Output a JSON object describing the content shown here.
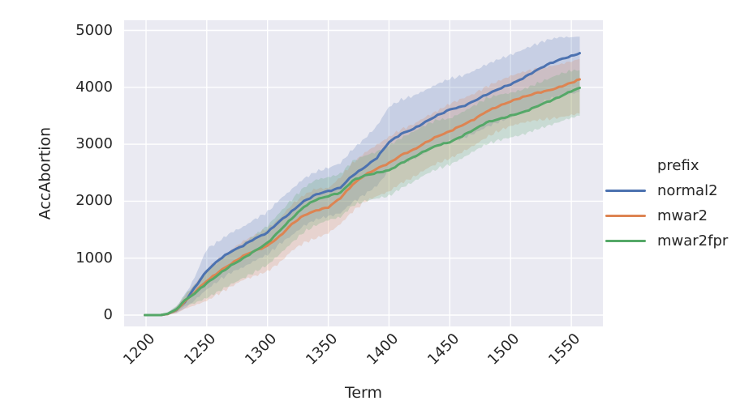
{
  "chart_data": {
    "type": "line",
    "xlabel": "Term",
    "ylabel": "AccAbortion",
    "legend_title": "prefix",
    "legend_position": "right",
    "grid": true,
    "style": "seaborn-darkgrid",
    "colors": {
      "axes_background": "#eaeaf2",
      "grid": "#ffffff",
      "text": "#262626",
      "figure_background": "#ffffff"
    },
    "xlim": [
      1182,
      1576
    ],
    "ylim": [
      -199,
      5178
    ],
    "x_ticks": [
      1200,
      1250,
      1300,
      1350,
      1400,
      1450,
      1500,
      1550
    ],
    "y_ticks": [
      0,
      1000,
      2000,
      3000,
      4000,
      5000
    ],
    "band_alpha": 0.22,
    "terms": [
      1199,
      1205,
      1212,
      1218,
      1225,
      1232,
      1240,
      1250,
      1260,
      1270,
      1280,
      1290,
      1300,
      1310,
      1320,
      1330,
      1340,
      1350,
      1360,
      1370,
      1380,
      1390,
      1400,
      1410,
      1420,
      1430,
      1440,
      1450,
      1460,
      1470,
      1480,
      1490,
      1500,
      1510,
      1520,
      1530,
      1540,
      1550,
      1557
    ],
    "series": [
      {
        "name": "normal2",
        "color": "#4c72b0",
        "values": [
          0,
          0,
          0,
          20,
          90,
          230,
          480,
          780,
          970,
          1120,
          1220,
          1350,
          1450,
          1650,
          1820,
          2000,
          2120,
          2175,
          2240,
          2450,
          2600,
          2760,
          3040,
          3180,
          3270,
          3390,
          3510,
          3610,
          3660,
          3760,
          3870,
          3970,
          4050,
          4160,
          4280,
          4400,
          4480,
          4550,
          4600
        ],
        "upper": [
          0,
          0,
          0,
          50,
          150,
          350,
          660,
          1160,
          1300,
          1450,
          1550,
          1690,
          1810,
          2030,
          2210,
          2400,
          2520,
          2585,
          2670,
          2910,
          3100,
          3320,
          3660,
          3780,
          3850,
          3950,
          4060,
          4150,
          4200,
          4290,
          4400,
          4490,
          4570,
          4660,
          4750,
          4830,
          4880,
          4880,
          4890
        ],
        "lower": [
          0,
          0,
          0,
          5,
          40,
          120,
          260,
          450,
          610,
          750,
          840,
          960,
          1060,
          1250,
          1400,
          1570,
          1680,
          1735,
          1790,
          1980,
          2120,
          2270,
          2540,
          2670,
          2750,
          2860,
          2970,
          3060,
          3100,
          3190,
          3300,
          3390,
          3470,
          3570,
          3650,
          3780,
          3840,
          3890,
          3920
        ]
      },
      {
        "name": "mwar2",
        "color": "#dd8452",
        "values": [
          0,
          0,
          0,
          20,
          90,
          240,
          400,
          600,
          760,
          900,
          1040,
          1130,
          1220,
          1380,
          1600,
          1750,
          1840,
          1890,
          2060,
          2290,
          2460,
          2570,
          2670,
          2810,
          2900,
          3030,
          3140,
          3230,
          3330,
          3440,
          3570,
          3670,
          3750,
          3830,
          3890,
          3940,
          4000,
          4080,
          4140
        ],
        "upper": [
          0,
          0,
          0,
          45,
          140,
          330,
          540,
          800,
          990,
          1150,
          1300,
          1410,
          1520,
          1700,
          1940,
          2110,
          2220,
          2230,
          2420,
          2670,
          2850,
          2990,
          3130,
          3260,
          3350,
          3480,
          3590,
          3710,
          3800,
          3890,
          4010,
          4110,
          4200,
          4270,
          4320,
          4360,
          4400,
          4460,
          4500
        ],
        "lower": [
          0,
          0,
          0,
          5,
          30,
          110,
          170,
          250,
          380,
          500,
          620,
          690,
          770,
          920,
          1130,
          1270,
          1350,
          1440,
          1600,
          1820,
          1990,
          2090,
          2170,
          2320,
          2420,
          2560,
          2670,
          2750,
          2860,
          2980,
          3120,
          3230,
          3320,
          3380,
          3420,
          3440,
          3470,
          3510,
          3540
        ]
      },
      {
        "name": "mwar2fpr",
        "color": "#55a868",
        "values": [
          0,
          0,
          0,
          25,
          100,
          260,
          380,
          560,
          720,
          870,
          1000,
          1130,
          1270,
          1480,
          1700,
          1900,
          2030,
          2090,
          2150,
          2360,
          2450,
          2500,
          2540,
          2670,
          2770,
          2890,
          2980,
          3040,
          3140,
          3260,
          3380,
          3440,
          3500,
          3560,
          3650,
          3740,
          3830,
          3930,
          3990
        ],
        "upper": [
          0,
          0,
          0,
          55,
          155,
          360,
          530,
          780,
          950,
          1110,
          1260,
          1410,
          1570,
          1800,
          2030,
          2240,
          2380,
          2420,
          2480,
          2700,
          2800,
          2870,
          2980,
          3110,
          3220,
          3340,
          3430,
          3450,
          3560,
          3680,
          3800,
          3870,
          3900,
          3960,
          4050,
          4140,
          4230,
          4290,
          4300
        ],
        "lower": [
          0,
          0,
          0,
          10,
          50,
          160,
          210,
          300,
          420,
          540,
          650,
          760,
          880,
          1070,
          1270,
          1460,
          1580,
          1670,
          1720,
          1920,
          2000,
          2050,
          2090,
          2230,
          2340,
          2470,
          2570,
          2640,
          2750,
          2880,
          3000,
          3070,
          3120,
          3170,
          3250,
          3320,
          3390,
          3470,
          3500
        ]
      }
    ]
  }
}
